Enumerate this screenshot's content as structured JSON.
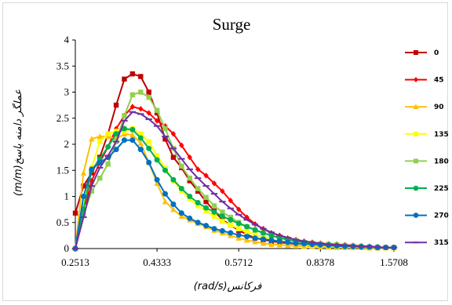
{
  "chart_data": {
    "type": "line",
    "title": "Surge",
    "xlabel": "فرکانس(rad/s)",
    "ylabel": "عملگر دامنه پاسخ(m/m)",
    "x_tick_labels": [
      "0.2513",
      "0.4333",
      "0.5712",
      "0.8378",
      "1.5708"
    ],
    "ylim": [
      0,
      4
    ],
    "y_ticks": [
      "0",
      "0.5",
      "1",
      "1.5",
      "2",
      "2.5",
      "3",
      "3.5",
      "4"
    ],
    "n_points": 40,
    "series": [
      {
        "name": "0",
        "color": "#c00000",
        "marker": "square",
        "values": [
          0.68,
          1.2,
          1.45,
          1.75,
          2.2,
          2.75,
          3.25,
          3.35,
          3.3,
          3.0,
          2.6,
          2.1,
          1.75,
          1.55,
          1.3,
          1.1,
          0.9,
          0.72,
          0.55,
          0.45,
          0.35,
          0.27,
          0.2,
          0.17,
          0.14,
          0.12,
          0.1,
          0.09,
          0.08,
          0.07,
          0.06,
          0.05,
          0.04,
          0.04,
          0.03,
          0.03,
          0.02,
          0.02,
          0.02,
          0.02
        ]
      },
      {
        "name": "45",
        "color": "#ff0000",
        "marker": "diamond",
        "values": [
          0,
          0.7,
          1.3,
          1.65,
          1.95,
          2.3,
          2.55,
          2.72,
          2.68,
          2.6,
          2.45,
          2.35,
          2.2,
          1.98,
          1.75,
          1.52,
          1.4,
          1.25,
          1.1,
          0.92,
          0.75,
          0.6,
          0.47,
          0.38,
          0.3,
          0.25,
          0.2,
          0.17,
          0.14,
          0.12,
          0.1,
          0.09,
          0.08,
          0.07,
          0.06,
          0.05,
          0.04,
          0.03,
          0.02,
          0.02
        ]
      },
      {
        "name": "90",
        "color": "#ffc000",
        "marker": "triangle",
        "values": [
          0,
          1.45,
          2.1,
          2.15,
          2.15,
          2.1,
          2.2,
          2.18,
          2.02,
          1.65,
          1.25,
          0.9,
          0.75,
          0.62,
          0.55,
          0.48,
          0.42,
          0.35,
          0.3,
          0.25,
          0.2,
          0.16,
          0.13,
          0.1,
          0.08,
          0.07,
          0.06,
          0.05,
          0.04,
          0.04,
          0.03,
          0.03,
          0.02,
          0.02,
          0.02,
          0.02,
          0.01,
          0.01,
          0.01,
          0.01
        ]
      },
      {
        "name": "135",
        "color": "#ffff00",
        "marker": "square",
        "values": [
          0,
          0.8,
          1.55,
          2.05,
          2.2,
          2.25,
          2.25,
          2.3,
          2.2,
          2.05,
          1.78,
          1.55,
          1.3,
          1.1,
          0.95,
          0.82,
          0.72,
          0.62,
          0.52,
          0.45,
          0.38,
          0.32,
          0.27,
          0.22,
          0.18,
          0.15,
          0.12,
          0.1,
          0.08,
          0.07,
          0.06,
          0.05,
          0.04,
          0.03,
          0.03,
          0.02,
          0.02,
          0.02,
          0.01,
          0.01
        ]
      },
      {
        "name": "180",
        "color": "#92d050",
        "marker": "square",
        "values": [
          0,
          0.65,
          1.1,
          1.35,
          1.62,
          2.05,
          2.55,
          2.95,
          3.0,
          2.9,
          2.65,
          2.3,
          1.92,
          1.58,
          1.35,
          1.15,
          0.98,
          0.82,
          0.7,
          0.6,
          0.5,
          0.42,
          0.35,
          0.3,
          0.25,
          0.21,
          0.18,
          0.15,
          0.12,
          0.1,
          0.09,
          0.08,
          0.07,
          0.06,
          0.05,
          0.04,
          0.03,
          0.02,
          0.02,
          0.02
        ]
      },
      {
        "name": "225",
        "color": "#00b050",
        "marker": "circle",
        "values": [
          0,
          0.75,
          1.5,
          1.72,
          1.95,
          2.2,
          2.3,
          2.28,
          2.12,
          1.92,
          1.7,
          1.5,
          1.32,
          1.15,
          1.0,
          0.88,
          0.78,
          0.7,
          0.62,
          0.55,
          0.48,
          0.42,
          0.36,
          0.3,
          0.25,
          0.2,
          0.17,
          0.14,
          0.12,
          0.1,
          0.08,
          0.07,
          0.06,
          0.05,
          0.04,
          0.04,
          0.03,
          0.03,
          0.02,
          0.02
        ]
      },
      {
        "name": "270",
        "color": "#0070c0",
        "marker": "circle",
        "values": [
          0,
          1.0,
          1.52,
          1.65,
          1.75,
          1.9,
          2.08,
          2.08,
          1.9,
          1.65,
          1.32,
          1.05,
          0.85,
          0.68,
          0.58,
          0.5,
          0.44,
          0.38,
          0.34,
          0.3,
          0.26,
          0.23,
          0.2,
          0.18,
          0.16,
          0.14,
          0.12,
          0.1,
          0.09,
          0.08,
          0.07,
          0.06,
          0.05,
          0.04,
          0.04,
          0.03,
          0.03,
          0.02,
          0.02,
          0.02
        ]
      },
      {
        "name": "315",
        "color": "#7030a0",
        "marker": "dash",
        "values": [
          0,
          0.6,
          1.2,
          1.55,
          1.78,
          2.05,
          2.45,
          2.62,
          2.58,
          2.48,
          2.35,
          2.15,
          1.92,
          1.72,
          1.52,
          1.35,
          1.2,
          1.05,
          0.9,
          0.77,
          0.65,
          0.55,
          0.46,
          0.38,
          0.31,
          0.25,
          0.21,
          0.17,
          0.14,
          0.12,
          0.1,
          0.08,
          0.07,
          0.06,
          0.05,
          0.04,
          0.04,
          0.03,
          0.02,
          0.02
        ]
      }
    ]
  }
}
